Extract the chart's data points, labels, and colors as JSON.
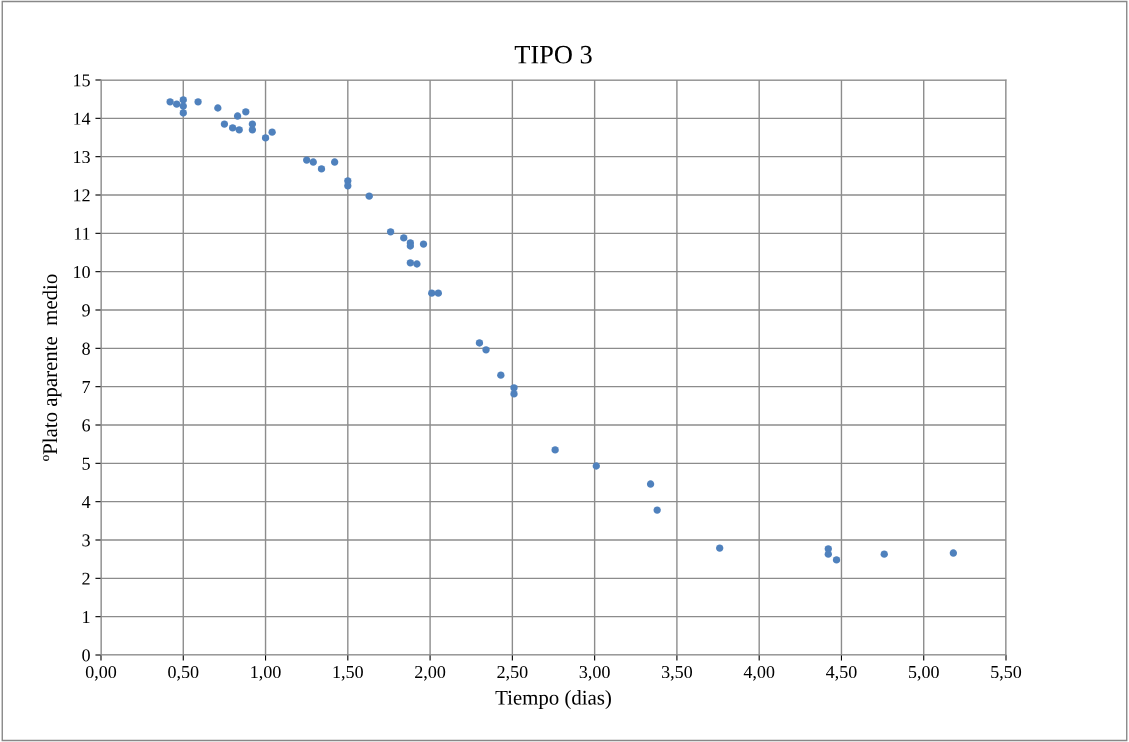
{
  "chart_data": {
    "type": "scatter",
    "title": "TIPO 3",
    "xlabel": "Tiempo (dias)",
    "ylabel": "ºPlato aparente  medio",
    "x": [
      0.42,
      0.46,
      0.5,
      0.5,
      0.5,
      0.59,
      0.71,
      0.75,
      0.8,
      0.83,
      0.84,
      0.88,
      0.92,
      0.92,
      1.0,
      1.04,
      1.25,
      1.29,
      1.34,
      1.42,
      1.5,
      1.5,
      1.63,
      1.76,
      1.84,
      1.88,
      1.88,
      1.96,
      1.88,
      1.92,
      2.01,
      2.05,
      2.3,
      2.34,
      2.43,
      2.51,
      2.51,
      2.76,
      3.01,
      3.34,
      3.38,
      3.76,
      4.42,
      4.42,
      4.47,
      4.76,
      5.18
    ],
    "values": [
      14.43,
      14.37,
      14.48,
      14.32,
      14.14,
      14.43,
      14.27,
      13.85,
      13.75,
      14.06,
      13.7,
      14.17,
      13.85,
      13.7,
      13.49,
      13.64,
      12.91,
      12.86,
      12.68,
      12.86,
      12.37,
      12.24,
      11.97,
      11.04,
      10.88,
      10.75,
      10.67,
      10.72,
      10.23,
      10.2,
      9.44,
      9.44,
      8.14,
      7.96,
      7.3,
      6.97,
      6.81,
      5.35,
      4.93,
      4.46,
      3.78,
      2.79,
      2.77,
      2.63,
      2.48,
      2.63,
      2.66
    ],
    "color": "#4f81bd",
    "marker": "circle",
    "grid": true,
    "legend": false,
    "xlim": [
      0,
      5.5
    ],
    "xticks": [
      {
        "value": 0,
        "label": "0,00"
      },
      {
        "value": 0.5,
        "label": "0,50"
      },
      {
        "value": 1,
        "label": "1,00"
      },
      {
        "value": 1.5,
        "label": "1,50"
      },
      {
        "value": 2,
        "label": "2,00"
      },
      {
        "value": 2.5,
        "label": "2,50"
      },
      {
        "value": 3,
        "label": "3,00"
      },
      {
        "value": 3.5,
        "label": "3,50"
      },
      {
        "value": 4,
        "label": "4,00"
      },
      {
        "value": 4.5,
        "label": "4,50"
      },
      {
        "value": 5,
        "label": "5,00"
      },
      {
        "value": 5.5,
        "label": "5,50"
      }
    ],
    "ylim": [
      0,
      15
    ],
    "yticks": [
      0,
      1,
      2,
      3,
      4,
      5,
      6,
      7,
      8,
      9,
      10,
      11,
      12,
      13,
      14,
      15
    ]
  }
}
